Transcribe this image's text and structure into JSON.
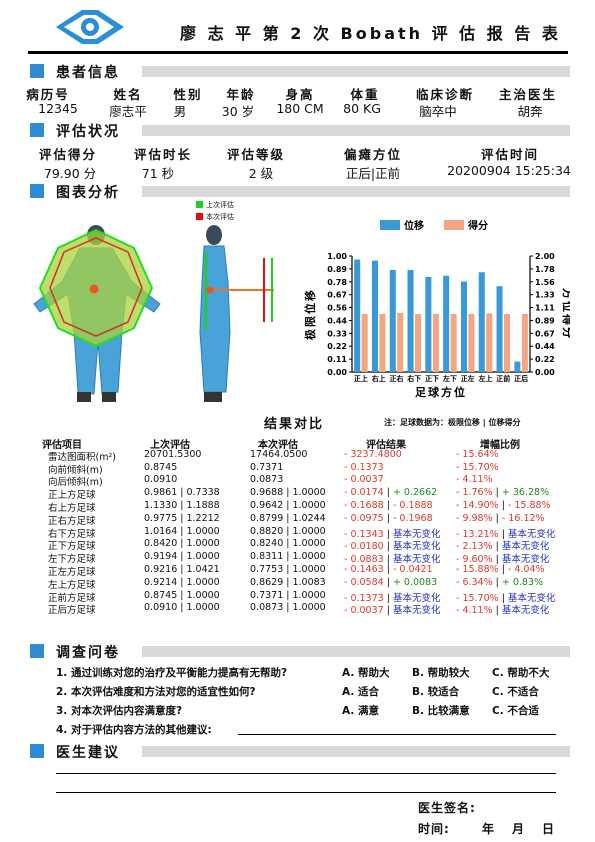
{
  "header": {
    "title": "廖 志 平 第 2 次 Bobath 评 估 报 告 表"
  },
  "sections": {
    "patient": "患者信息",
    "assessment": "评估状况",
    "charts": "图表分析",
    "survey": "调查问卷",
    "advice": "医生建议"
  },
  "patient": {
    "headers": [
      "病历号",
      "姓名",
      "性别",
      "年龄",
      "身高",
      "体重",
      "临床诊断",
      "主治医生"
    ],
    "values": [
      "12345",
      "廖志平",
      "男",
      "30 岁",
      "180 CM",
      "80 KG",
      "脑卒中",
      "胡奔"
    ]
  },
  "assessment": {
    "headers": [
      "评估得分",
      "评估时长",
      "评估等级",
      "偏瘫方位",
      "评估时间"
    ],
    "values": [
      "79.90 分",
      "71 秒",
      "2 级",
      "正后|正前",
      "20200904 15:25:34"
    ]
  },
  "figure_legend": {
    "last": "上次评估",
    "current": "本次评估"
  },
  "chart_data": {
    "type": "bar",
    "categories": [
      "正上",
      "右上",
      "正右",
      "右下",
      "正下",
      "左下",
      "正左",
      "左上",
      "正前",
      "正后"
    ],
    "series": [
      {
        "name": "位移",
        "color": "#3a9ad9",
        "values": [
          0.97,
          0.96,
          0.88,
          0.88,
          0.82,
          0.83,
          0.78,
          0.86,
          0.74,
          0.09
        ]
      },
      {
        "name": "得分",
        "color": "#f4a582",
        "values": [
          1.0,
          1.0,
          1.02,
          1.0,
          1.0,
          1.0,
          1.0,
          1.01,
          1.0,
          1.0
        ]
      }
    ],
    "xlabel": "足球方位",
    "ylabel_left": "极限位移",
    "ylabel_right": "方位得分",
    "y_left_ticks": [
      "1.00",
      "0.89",
      "0.78",
      "0.67",
      "0.56",
      "0.44",
      "0.33",
      "0.22",
      "0.11",
      "0.00"
    ],
    "y_right_ticks": [
      "2.00",
      "1.78",
      "1.56",
      "1.33",
      "1.11",
      "0.89",
      "0.67",
      "0.44",
      "0.22",
      "0.00"
    ],
    "ylim_left": [
      0,
      1
    ],
    "ylim_right": [
      0,
      2
    ],
    "legend_position": "top-center"
  },
  "compare": {
    "title": "结果对比",
    "note": "注：足球数据为：极限位移 | 位移得分",
    "headers": [
      "评估项目",
      "上次评估",
      "本次评估",
      "评估结果",
      "增幅比例"
    ],
    "rows": [
      {
        "name": "雷达图面积(m²)",
        "last": "20701.5300",
        "cur": "17464.0500",
        "res": [
          [
            "- 3237.4800",
            "red"
          ]
        ],
        "pct": [
          [
            "- 15.64%",
            "red"
          ]
        ]
      },
      {
        "name": "向前倾斜(m)",
        "last": "0.8745",
        "cur": "0.7371",
        "res": [
          [
            "- 0.1373",
            "red"
          ]
        ],
        "pct": [
          [
            "- 15.70%",
            "red"
          ]
        ]
      },
      {
        "name": "向后倾斜(m)",
        "last": "0.0910",
        "cur": "0.0873",
        "res": [
          [
            "- 0.0037",
            "red"
          ]
        ],
        "pct": [
          [
            "- 4.11%",
            "red"
          ]
        ]
      },
      {
        "name": "正上方足球",
        "last": "0.9861 | 0.7338",
        "cur": "0.9688 | 1.0000",
        "res": [
          [
            "- 0.0174",
            "red"
          ],
          [
            " | ",
            "k"
          ],
          [
            "+ 0.2662",
            "green"
          ]
        ],
        "pct": [
          [
            "- 1.76%",
            "red"
          ],
          [
            " | ",
            "k"
          ],
          [
            "+ 36.28%",
            "green"
          ]
        ]
      },
      {
        "name": "右上方足球",
        "last": "1.1330 | 1.1888",
        "cur": "0.9642 | 1.0000",
        "res": [
          [
            "- 0.1688",
            "red"
          ],
          [
            " | ",
            "k"
          ],
          [
            "- 0.1888",
            "red"
          ]
        ],
        "pct": [
          [
            "- 14.90%",
            "red"
          ],
          [
            " | ",
            "k"
          ],
          [
            "- 15.88%",
            "red"
          ]
        ]
      },
      {
        "name": "正右方足球",
        "last": "0.9775 | 1.2212",
        "cur": "0.8799 | 1.0244",
        "res": [
          [
            "- 0.0975",
            "red"
          ],
          [
            " | ",
            "k"
          ],
          [
            "- 0.1968",
            "red"
          ]
        ],
        "pct": [
          [
            "- 9.98%",
            "red"
          ],
          [
            " | ",
            "k"
          ],
          [
            "- 16.12%",
            "red"
          ]
        ]
      },
      {
        "name": "右下方足球",
        "last": "1.0164 | 1.0000",
        "cur": "0.8820 | 1.0000",
        "res": [
          [
            "- 0.1343",
            "red"
          ],
          [
            " | ",
            "k"
          ],
          [
            "基本无变化",
            "blue"
          ]
        ],
        "pct": [
          [
            "- 13.21%",
            "red"
          ],
          [
            " | ",
            "k"
          ],
          [
            "基本无变化",
            "blue"
          ]
        ]
      },
      {
        "name": "正下方足球",
        "last": "0.8420 | 1.0000",
        "cur": "0.8240 | 1.0000",
        "res": [
          [
            "- 0.0180",
            "red"
          ],
          [
            " | ",
            "k"
          ],
          [
            "基本无变化",
            "blue"
          ]
        ],
        "pct": [
          [
            "- 2.13%",
            "red"
          ],
          [
            " | ",
            "k"
          ],
          [
            "基本无变化",
            "blue"
          ]
        ]
      },
      {
        "name": "左下方足球",
        "last": "0.9194 | 1.0000",
        "cur": "0.8311 | 1.0000",
        "res": [
          [
            "- 0.0883",
            "red"
          ],
          [
            " | ",
            "k"
          ],
          [
            "基本无变化",
            "blue"
          ]
        ],
        "pct": [
          [
            "- 9.60%",
            "red"
          ],
          [
            " | ",
            "k"
          ],
          [
            "基本无变化",
            "blue"
          ]
        ]
      },
      {
        "name": "正左方足球",
        "last": "0.9216 | 1.0421",
        "cur": "0.7753 | 1.0000",
        "res": [
          [
            "- 0.1463",
            "red"
          ],
          [
            " | ",
            "k"
          ],
          [
            "- 0.0421",
            "red"
          ]
        ],
        "pct": [
          [
            "- 15.88%",
            "red"
          ],
          [
            " | ",
            "k"
          ],
          [
            "- 4.04%",
            "red"
          ]
        ]
      },
      {
        "name": "左上方足球",
        "last": "0.9214 | 1.0000",
        "cur": "0.8629 | 1.0083",
        "res": [
          [
            "- 0.0584",
            "red"
          ],
          [
            " | ",
            "k"
          ],
          [
            "+ 0.0083",
            "green"
          ]
        ],
        "pct": [
          [
            "- 6.34%",
            "red"
          ],
          [
            " | ",
            "k"
          ],
          [
            "+ 0.83%",
            "green"
          ]
        ]
      },
      {
        "name": "正前方足球",
        "last": "0.8745 | 1.0000",
        "cur": "0.7371 | 1.0000",
        "res": [
          [
            "- 0.1373",
            "red"
          ],
          [
            " | ",
            "k"
          ],
          [
            "基本无变化",
            "blue"
          ]
        ],
        "pct": [
          [
            "- 15.70%",
            "red"
          ],
          [
            " | ",
            "k"
          ],
          [
            "基本无变化",
            "blue"
          ]
        ]
      },
      {
        "name": "正后方足球",
        "last": "0.0910 | 1.0000",
        "cur": "0.0873 | 1.0000",
        "res": [
          [
            "- 0.0037",
            "red"
          ],
          [
            " | ",
            "k"
          ],
          [
            "基本无变化",
            "blue"
          ]
        ],
        "pct": [
          [
            "- 4.11%",
            "red"
          ],
          [
            " | ",
            "k"
          ],
          [
            "基本无变化",
            "blue"
          ]
        ]
      }
    ]
  },
  "survey": {
    "questions": [
      {
        "q": "1. 通过训练对您的治疗及平衡能力提高有无帮助?",
        "opts": [
          "A. 帮助大",
          "B. 帮助较大",
          "C. 帮助不大"
        ]
      },
      {
        "q": "2. 本次评估难度和方法对您的适宜性如何?",
        "opts": [
          "A. 适合",
          "B. 较适合",
          "C. 不适合"
        ]
      },
      {
        "q": "3. 对本次评估内容满意度?",
        "opts": [
          "A. 满意",
          "B. 比较满意",
          "C. 不合适"
        ]
      },
      {
        "q": "4. 对于评估内容方法的其他建议:",
        "opts": []
      }
    ]
  },
  "signature": {
    "doctor": "医生签名:",
    "time": "时间:",
    "year": "年",
    "month": "月",
    "day": "日"
  },
  "colors": {
    "accent": "#2e8bd6",
    "bar_blue": "#3a9ad9",
    "bar_orange": "#f4a582",
    "decrease": "#e0382a",
    "increase": "#1a8d1a",
    "nochange": "#1f33c8"
  }
}
